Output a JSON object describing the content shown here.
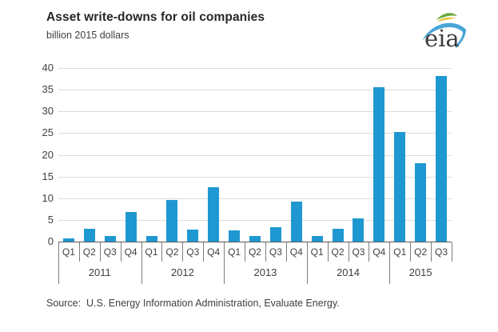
{
  "header": {
    "title": "Asset write-downs for oil companies",
    "subtitle": "billion 2015 dollars",
    "logo_text": "eia"
  },
  "chart_data": {
    "type": "bar",
    "title": "Asset write-downs for oil companies",
    "ylabel": "billion 2015 dollars",
    "ylim": [
      0,
      40
    ],
    "yticks": [
      0,
      5,
      10,
      15,
      20,
      25,
      30,
      35,
      40
    ],
    "grid": true,
    "bar_color": "#1f98d2",
    "categories": [
      "Q1",
      "Q2",
      "Q3",
      "Q4",
      "Q1",
      "Q2",
      "Q3",
      "Q4",
      "Q1",
      "Q2",
      "Q3",
      "Q4",
      "Q1",
      "Q2",
      "Q3",
      "Q4",
      "Q1",
      "Q2",
      "Q3"
    ],
    "year_groups": [
      {
        "label": "2011",
        "quarters": 4
      },
      {
        "label": "2012",
        "quarters": 4
      },
      {
        "label": "2013",
        "quarters": 4
      },
      {
        "label": "2014",
        "quarters": 4
      },
      {
        "label": "2015",
        "quarters": 3
      }
    ],
    "values": [
      0.7,
      3.0,
      1.2,
      6.8,
      1.3,
      9.5,
      2.8,
      12.6,
      2.5,
      1.2,
      3.4,
      9.2,
      1.2,
      2.9,
      5.4,
      35.6,
      25.2,
      18.0,
      38.2
    ]
  },
  "footer": {
    "source": "Source:  U.S. Energy Information Administration, Evaluate Energy."
  },
  "colors": {
    "bar": "#1f98d2",
    "gridline": "#dcdcdc",
    "axis_line": "#595959",
    "tick_line": "#7f7f7f",
    "text": "#404040",
    "title_text": "#262626",
    "logo_blue": "#49a5d6",
    "logo_green": "#6aaa3a",
    "logo_yellow": "#e8c830"
  }
}
